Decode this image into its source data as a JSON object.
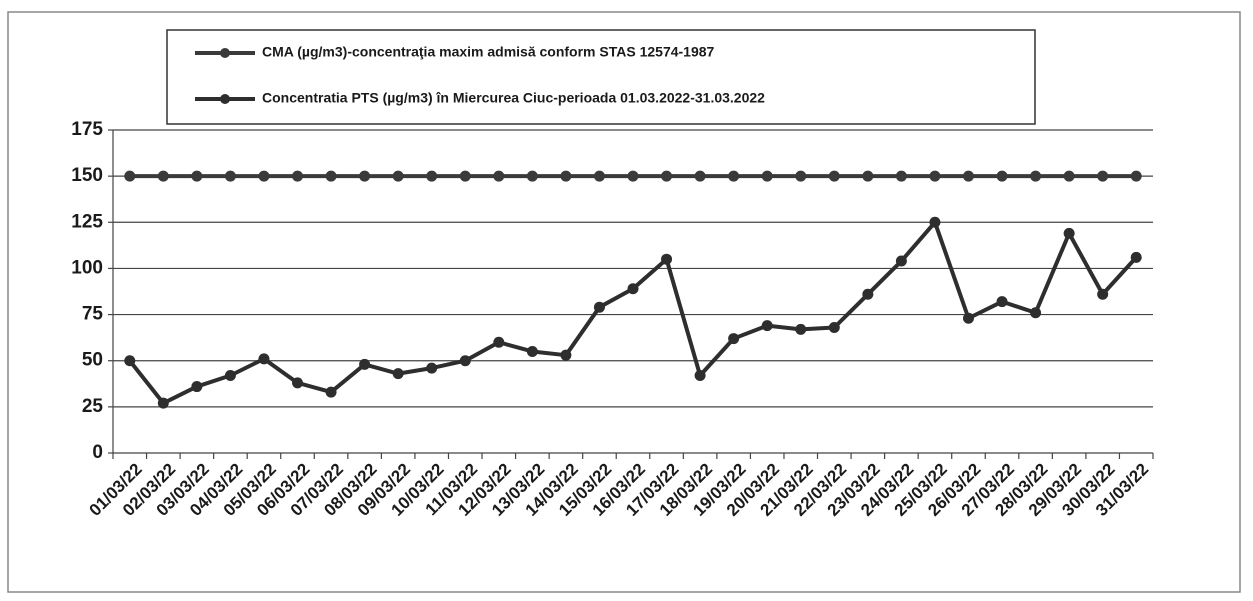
{
  "chart_data": {
    "type": "line",
    "categories": [
      "01/03/22",
      "02/03/22",
      "03/03/22",
      "04/03/22",
      "05/03/22",
      "06/03/22",
      "07/03/22",
      "08/03/22",
      "09/03/22",
      "10/03/22",
      "11/03/22",
      "12/03/22",
      "13/03/22",
      "14/03/22",
      "15/03/22",
      "16/03/22",
      "17/03/22",
      "18/03/22",
      "19/03/22",
      "20/03/22",
      "21/03/22",
      "22/03/22",
      "23/03/22",
      "24/03/22",
      "25/03/22",
      "26/03/22",
      "27/03/22",
      "28/03/22",
      "29/03/22",
      "30/03/22",
      "31/03/22"
    ],
    "series": [
      {
        "name": "CMA (µg/m3)-concentraţia maxim admisă conform STAS 12574-1987",
        "color": "#3a3a3a",
        "values": [
          150,
          150,
          150,
          150,
          150,
          150,
          150,
          150,
          150,
          150,
          150,
          150,
          150,
          150,
          150,
          150,
          150,
          150,
          150,
          150,
          150,
          150,
          150,
          150,
          150,
          150,
          150,
          150,
          150,
          150,
          150
        ]
      },
      {
        "name": "Concentratia PTS (µg/m3) în Miercurea Ciuc-perioada 01.03.2022-31.03.2022",
        "color": "#2e2e2e",
        "values": [
          50,
          27,
          36,
          42,
          51,
          38,
          33,
          48,
          43,
          46,
          50,
          60,
          55,
          53,
          79,
          89,
          105,
          42,
          62,
          69,
          67,
          68,
          86,
          104,
          125,
          73,
          82,
          76,
          119,
          86,
          106
        ]
      }
    ],
    "ylim": [
      0,
      175
    ],
    "yticks": [
      0,
      25,
      50,
      75,
      100,
      125,
      150,
      175
    ],
    "grid": true
  }
}
